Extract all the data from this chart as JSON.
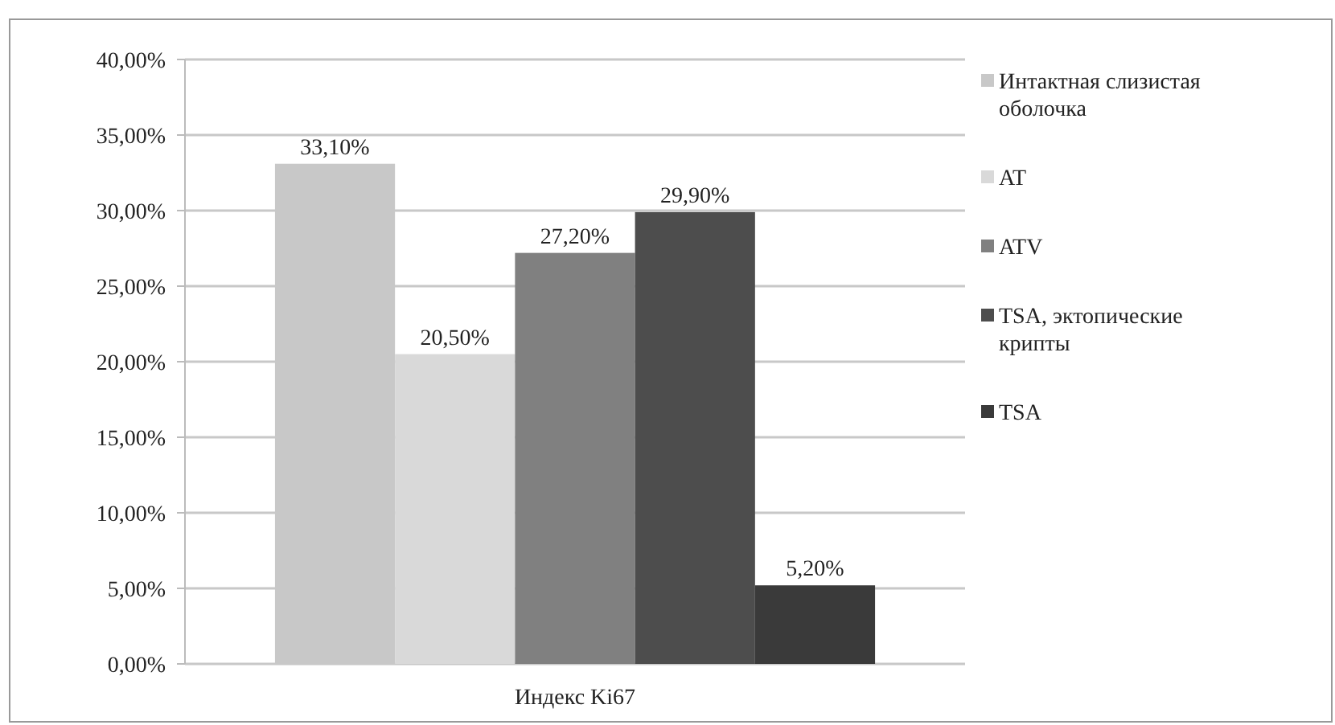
{
  "chart_data": {
    "type": "bar",
    "categories": [
      "Индекс Ki67"
    ],
    "series": [
      {
        "name": "Интактная слизистая оболочка",
        "color": "#c8c8c8",
        "values": [
          33.1
        ],
        "value_labels": [
          "33,10%"
        ]
      },
      {
        "name": "AT",
        "color": "#d9d9d9",
        "values": [
          20.5
        ],
        "value_labels": [
          "20,50%"
        ]
      },
      {
        "name": "ATV",
        "color": "#808080",
        "values": [
          27.2
        ],
        "value_labels": [
          "27,20%"
        ]
      },
      {
        "name": "TSA, эктопические крипты",
        "color": "#4d4d4d",
        "values": [
          29.9
        ],
        "value_labels": [
          "29,90%"
        ]
      },
      {
        "name": "TSA",
        "color": "#3a3a3a",
        "values": [
          5.2
        ],
        "value_labels": [
          "5,20%"
        ]
      }
    ],
    "ylim": [
      0,
      40
    ],
    "yticks": [
      {
        "value": 0,
        "label": "0,00%"
      },
      {
        "value": 5,
        "label": "5,00%"
      },
      {
        "value": 10,
        "label": "10,00%"
      },
      {
        "value": 15,
        "label": "15,00%"
      },
      {
        "value": 20,
        "label": "20,00%"
      },
      {
        "value": 25,
        "label": "25,00%"
      },
      {
        "value": 30,
        "label": "30,00%"
      },
      {
        "value": 35,
        "label": "35,00%"
      },
      {
        "value": 40,
        "label": "40,00%"
      }
    ],
    "grid": "y",
    "legend": "right"
  }
}
